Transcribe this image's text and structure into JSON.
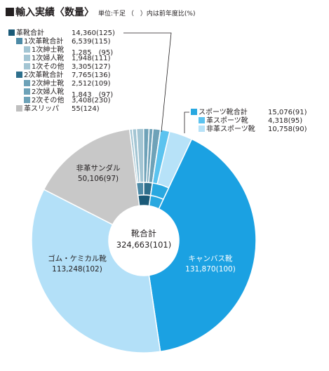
{
  "header": {
    "title": "輸入実績〈数量〉",
    "unit_note": "単位:千足 （　）内は前年度比(%)"
  },
  "colors": {
    "leather_total": "#1a5a78",
    "leather_1": "#4d8aa6",
    "leather_1_sub": "#a3c5d3",
    "leather_2": "#2e6f8c",
    "leather_2_sub": "#6ea2b8",
    "slippers": "#bfbfbf",
    "sports": "#29a8e0",
    "sports_leather": "#5cc3ef",
    "sports_nonleather": "#b7e2f8",
    "canvas": "#1ba1e2",
    "rubber": "#b3e0f8",
    "sandals": "#c8c8c8",
    "border": "#ffffff",
    "text_dark": "#231f20",
    "text_light": "#ffffff"
  },
  "legend_left": [
    {
      "label": "革靴合計",
      "value": "14,360(125)",
      "color": "#1a5a78",
      "indent": 0
    },
    {
      "label": "1次革靴合計",
      "value": "6,539(115)",
      "color": "#4d8aa6",
      "indent": 1
    },
    {
      "label": "1次紳士靴",
      "value": "1,285　(95)",
      "color": "#a3c5d3",
      "indent": 2
    },
    {
      "label": "1次婦人靴",
      "value": "1,948(111)",
      "color": "#a3c5d3",
      "indent": 2
    },
    {
      "label": "1次その他",
      "value": "3,305(127)",
      "color": "#a3c5d3",
      "indent": 2
    },
    {
      "label": "2次革靴合計",
      "value": "7,765(136)",
      "color": "#2e6f8c",
      "indent": 1
    },
    {
      "label": "2次紳士靴",
      "value": "2,512(109)",
      "color": "#6ea2b8",
      "indent": 2
    },
    {
      "label": "2次婦人靴",
      "value": "1,843　(97)",
      "color": "#6ea2b8",
      "indent": 2
    },
    {
      "label": "2次その他",
      "value": "3,408(230)",
      "color": "#6ea2b8",
      "indent": 2
    },
    {
      "label": "革スリッパ",
      "value": "55(124)",
      "color": "#bfbfbf",
      "indent": 1
    }
  ],
  "legend_right": [
    {
      "label": "スポーツ靴合計",
      "value": "15,076(91)",
      "color": "#29a8e0",
      "indent": 0
    },
    {
      "label": "革スポーツ靴",
      "value": "4,318(95)",
      "color": "#5cc3ef",
      "indent": 1
    },
    {
      "label": "非革スポーツ靴",
      "value": "10,758(90)",
      "color": "#b7e2f8",
      "indent": 1
    }
  ],
  "center": {
    "label": "靴合計",
    "value": "324,663(101)"
  },
  "chart_data": {
    "type": "pie",
    "title": "輸入実績〈数量〉",
    "unit": "千足",
    "total": {
      "label": "靴合計",
      "value": 324663,
      "yoy": 101
    },
    "outer_ring": [
      {
        "name": "革靴合計",
        "value": 14360,
        "yoy": 125
      },
      {
        "name": "スポーツ靴合計",
        "value": 15076,
        "yoy": 91
      },
      {
        "name": "キャンバス靴",
        "value": 131870,
        "yoy": 100
      },
      {
        "name": "ゴム・ケミカル靴",
        "value": 113248,
        "yoy": 102
      },
      {
        "name": "非革サンダル",
        "value": 50106,
        "yoy": 97
      }
    ],
    "inner_ring": [
      {
        "name": "1次紳士靴",
        "value": 1285,
        "yoy": 95
      },
      {
        "name": "1次婦人靴",
        "value": 1948,
        "yoy": 111
      },
      {
        "name": "1次その他",
        "value": 3305,
        "yoy": 127
      },
      {
        "name": "2次紳士靴",
        "value": 2512,
        "yoy": 109
      },
      {
        "name": "2次婦人靴",
        "value": 1843,
        "yoy": 97
      },
      {
        "name": "2次その他",
        "value": 3408,
        "yoy": 230
      },
      {
        "name": "革スリッパ",
        "value": 55,
        "yoy": 124
      },
      {
        "name": "革スポーツ靴",
        "value": 4318,
        "yoy": 95
      },
      {
        "name": "非革スポーツ靴",
        "value": 10758,
        "yoy": 90
      },
      {
        "name": "キャンバス靴",
        "value": 131870,
        "yoy": 100
      },
      {
        "name": "ゴム・ケミカル靴",
        "value": 113248,
        "yoy": 102
      },
      {
        "name": "非革サンダル",
        "value": 50106,
        "yoy": 97
      }
    ],
    "subtotals": [
      {
        "name": "1次革靴合計",
        "value": 6539,
        "yoy": 115
      },
      {
        "name": "2次革靴合計",
        "value": 7765,
        "yoy": 136
      }
    ],
    "slice_labels": [
      {
        "name": "キャンバス靴",
        "value_text": "131,870(100)"
      },
      {
        "name": "ゴム・ケミカル靴",
        "value_text": "113,248(102)"
      },
      {
        "name": "非革サンダル",
        "value_text": "50,106(97)"
      }
    ]
  }
}
